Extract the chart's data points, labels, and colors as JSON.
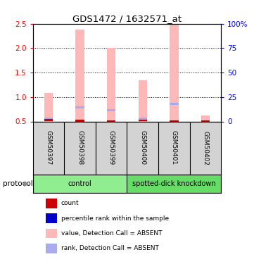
{
  "title": "GDS1472 / 1632571_at",
  "samples": [
    "GSM50397",
    "GSM50398",
    "GSM50399",
    "GSM50400",
    "GSM50401",
    "GSM50402"
  ],
  "bar_values": [
    1.08,
    2.38,
    2.0,
    1.35,
    2.5,
    0.62
  ],
  "rank_values": [
    0.555,
    0.79,
    0.735,
    0.555,
    0.865,
    0.5
  ],
  "count_values": [
    0.53,
    0.515,
    0.5,
    0.525,
    0.5,
    0.5
  ],
  "bar_color": "#ffb8b8",
  "rank_color": "#aaaaee",
  "count_color": "#cc0000",
  "ylim_left": [
    0.5,
    2.5
  ],
  "yticks_left": [
    0.5,
    1.0,
    1.5,
    2.0,
    2.5
  ],
  "ylim_right": [
    0,
    100
  ],
  "yticks_right": [
    0,
    25,
    50,
    75,
    100
  ],
  "groups": [
    {
      "label": "control",
      "start": 0,
      "end": 3,
      "color": "#90ee90"
    },
    {
      "label": "spotted-dick knockdown",
      "start": 3,
      "end": 6,
      "color": "#66dd66"
    }
  ],
  "protocol_label": "protocol",
  "legend_items": [
    {
      "label": "count",
      "color": "#cc0000"
    },
    {
      "label": "percentile rank within the sample",
      "color": "#0000cc"
    },
    {
      "label": "value, Detection Call = ABSENT",
      "color": "#ffb8b8"
    },
    {
      "label": "rank, Detection Call = ABSENT",
      "color": "#aaaaee"
    }
  ],
  "bar_width": 0.28,
  "sample_bg_color": "#d3d3d3",
  "plot_bg_color": "#ffffff"
}
